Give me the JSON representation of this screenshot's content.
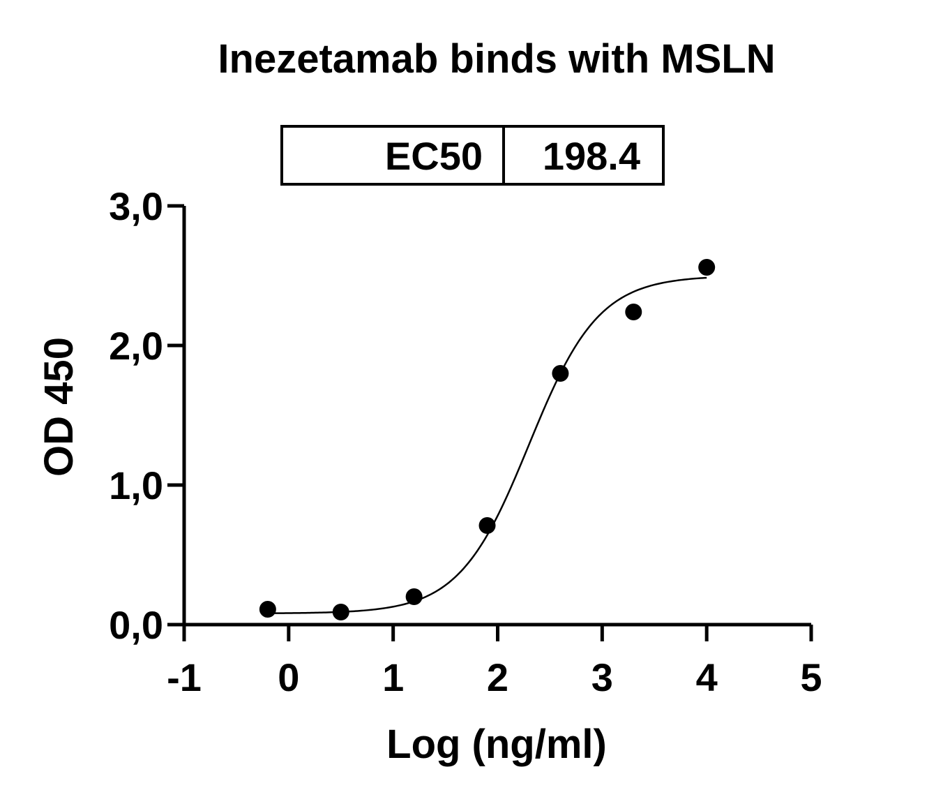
{
  "chart_data": {
    "type": "scatter",
    "title": "Inezetamab binds with MSLN",
    "xlabel": "Log (ng/ml)",
    "ylabel": "OD 450",
    "xlim": [
      -1,
      5
    ],
    "ylim": [
      0,
      3
    ],
    "x_ticks": [
      "-1",
      "0",
      "1",
      "2",
      "3",
      "4",
      "5"
    ],
    "y_ticks": [
      "0,0",
      "1,0",
      "2,0",
      "3,0"
    ],
    "x_tick_values": [
      -1,
      0,
      1,
      2,
      3,
      4,
      5
    ],
    "y_tick_values": [
      0,
      1,
      2,
      3
    ],
    "grid": false,
    "legend": "none",
    "points": {
      "x": [
        -0.2,
        0.5,
        1.2,
        1.9,
        2.6,
        3.3,
        4.0
      ],
      "y": [
        0.11,
        0.09,
        0.2,
        0.71,
        1.8,
        2.24,
        2.56
      ]
    },
    "fit_curve": {
      "model": "4PL",
      "bottom": 0.08,
      "top": 2.5,
      "log_ec50": 2.3,
      "hill_slope": 1.3,
      "x_range": [
        -0.2,
        4.0
      ]
    },
    "ec50_box": {
      "label": "EC50",
      "value": "198.4"
    },
    "colors": {
      "ink": "#000000",
      "background": "#ffffff"
    }
  }
}
